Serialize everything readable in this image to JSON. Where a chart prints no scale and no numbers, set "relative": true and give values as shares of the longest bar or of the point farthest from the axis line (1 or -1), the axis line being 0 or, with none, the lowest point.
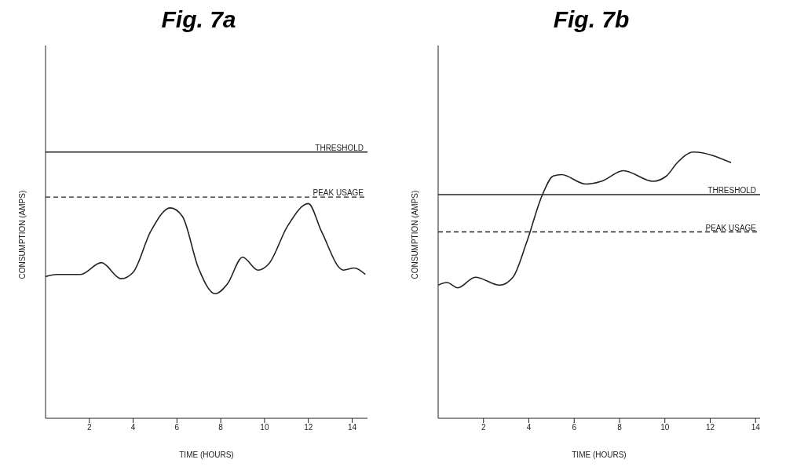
{
  "chart_data": [
    {
      "type": "line",
      "title": "Fig. 7a",
      "xlabel": "TIME (HOURS)",
      "ylabel": "CONSUMPTION (AMPS)",
      "relative": true,
      "marker": "none",
      "xlim": [
        0,
        14.7
      ],
      "xticks": [
        2,
        4,
        6,
        8,
        10,
        12,
        14
      ],
      "series": [
        {
          "color": "#222222",
          "x": [
            0,
            0.5,
            1.6,
            2.55,
            3.45,
            4.0,
            4.8,
            5.7,
            6.25,
            6.98,
            7.75,
            8.3,
            9.0,
            9.7,
            10.2,
            11.05,
            12.0,
            12.6,
            13.6,
            14.1,
            14.6
          ],
          "values": [
            0.66,
            0.67,
            0.67,
            0.725,
            0.65,
            0.68,
            0.87,
            0.98,
            0.94,
            0.7,
            0.58,
            0.625,
            0.75,
            0.69,
            0.72,
            0.895,
            1.0,
            0.87,
            0.69,
            0.7,
            0.67
          ]
        }
      ],
      "ref_lines": [
        {
          "axis": "y",
          "value": 1.24,
          "label": "THRESHOLD",
          "color": "#222222",
          "line_style": "solid"
        },
        {
          "axis": "y",
          "value": 1.03,
          "label": "PEAK USAGE",
          "color": "#222222",
          "line_style": "dashed"
        }
      ]
    },
    {
      "type": "line",
      "title": "Fig. 7b",
      "xlabel": "TIME (HOURS)",
      "ylabel": "CONSUMPTION (AMPS)",
      "relative": true,
      "marker": "none",
      "xlim": [
        0,
        14.2
      ],
      "xticks": [
        2,
        4,
        6,
        8,
        10,
        12,
        14
      ],
      "series": [
        {
          "color": "#222222",
          "x": [
            0,
            0.39,
            0.87,
            1.64,
            2.71,
            3.3,
            3.9,
            4.6,
            5.08,
            5.44,
            6.5,
            7.2,
            8.17,
            9.48,
            10.07,
            10.55,
            11.26,
            12.92
          ],
          "values": [
            0.5,
            0.51,
            0.49,
            0.53,
            0.5,
            0.53,
            0.66,
            0.84,
            0.91,
            0.915,
            0.88,
            0.89,
            0.93,
            0.89,
            0.91,
            0.96,
            1.0,
            0.96
          ]
        }
      ],
      "ref_lines": [
        {
          "axis": "y",
          "value": 0.84,
          "label": "THRESHOLD",
          "color": "#222222",
          "line_style": "solid"
        },
        {
          "axis": "y",
          "value": 0.7,
          "label": "PEAK USAGE",
          "color": "#222222",
          "line_style": "dashed"
        }
      ]
    }
  ]
}
